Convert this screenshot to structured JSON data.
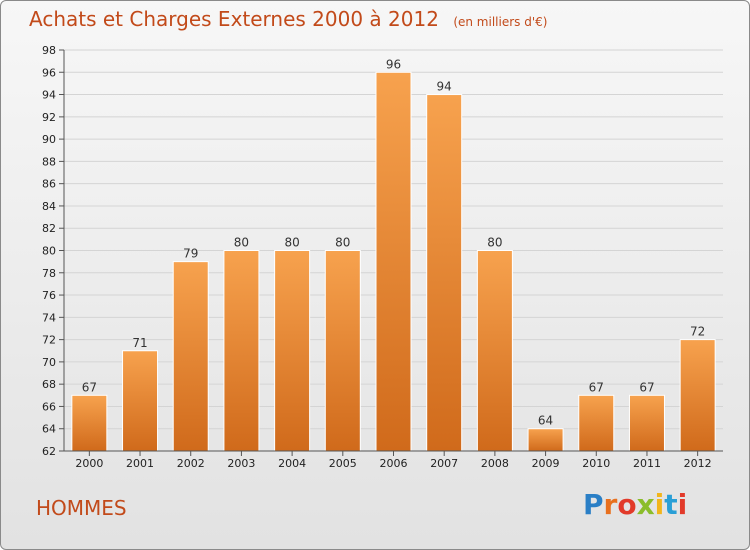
{
  "header": {
    "title": "Achats et Charges Externes 2000 à 2012",
    "unit": "(en milliers d'€)"
  },
  "group_label": "HOMMES",
  "logo_text": [
    "P",
    "r",
    "o",
    "x",
    "i",
    "t",
    "i"
  ],
  "colors": {
    "bar_top": "#f7a24e",
    "bar_bottom": "#d06a1b",
    "title": "#c24a1a",
    "gridline": "#d4d4d4"
  },
  "chart_data": {
    "type": "bar",
    "title": "Achats et Charges Externes 2000 à 2012",
    "subtitle": "(en milliers d'€)",
    "categories": [
      "2000",
      "2001",
      "2002",
      "2003",
      "2004",
      "2005",
      "2006",
      "2007",
      "2008",
      "2009",
      "2010",
      "2011",
      "2012"
    ],
    "values": [
      67,
      71,
      79,
      80,
      80,
      80,
      96,
      94,
      80,
      64,
      67,
      67,
      72
    ],
    "ylim": [
      62,
      98
    ],
    "yticks": [
      62,
      64,
      66,
      68,
      70,
      72,
      74,
      76,
      78,
      80,
      82,
      84,
      86,
      88,
      90,
      92,
      94,
      96,
      98
    ],
    "grid": true
  }
}
